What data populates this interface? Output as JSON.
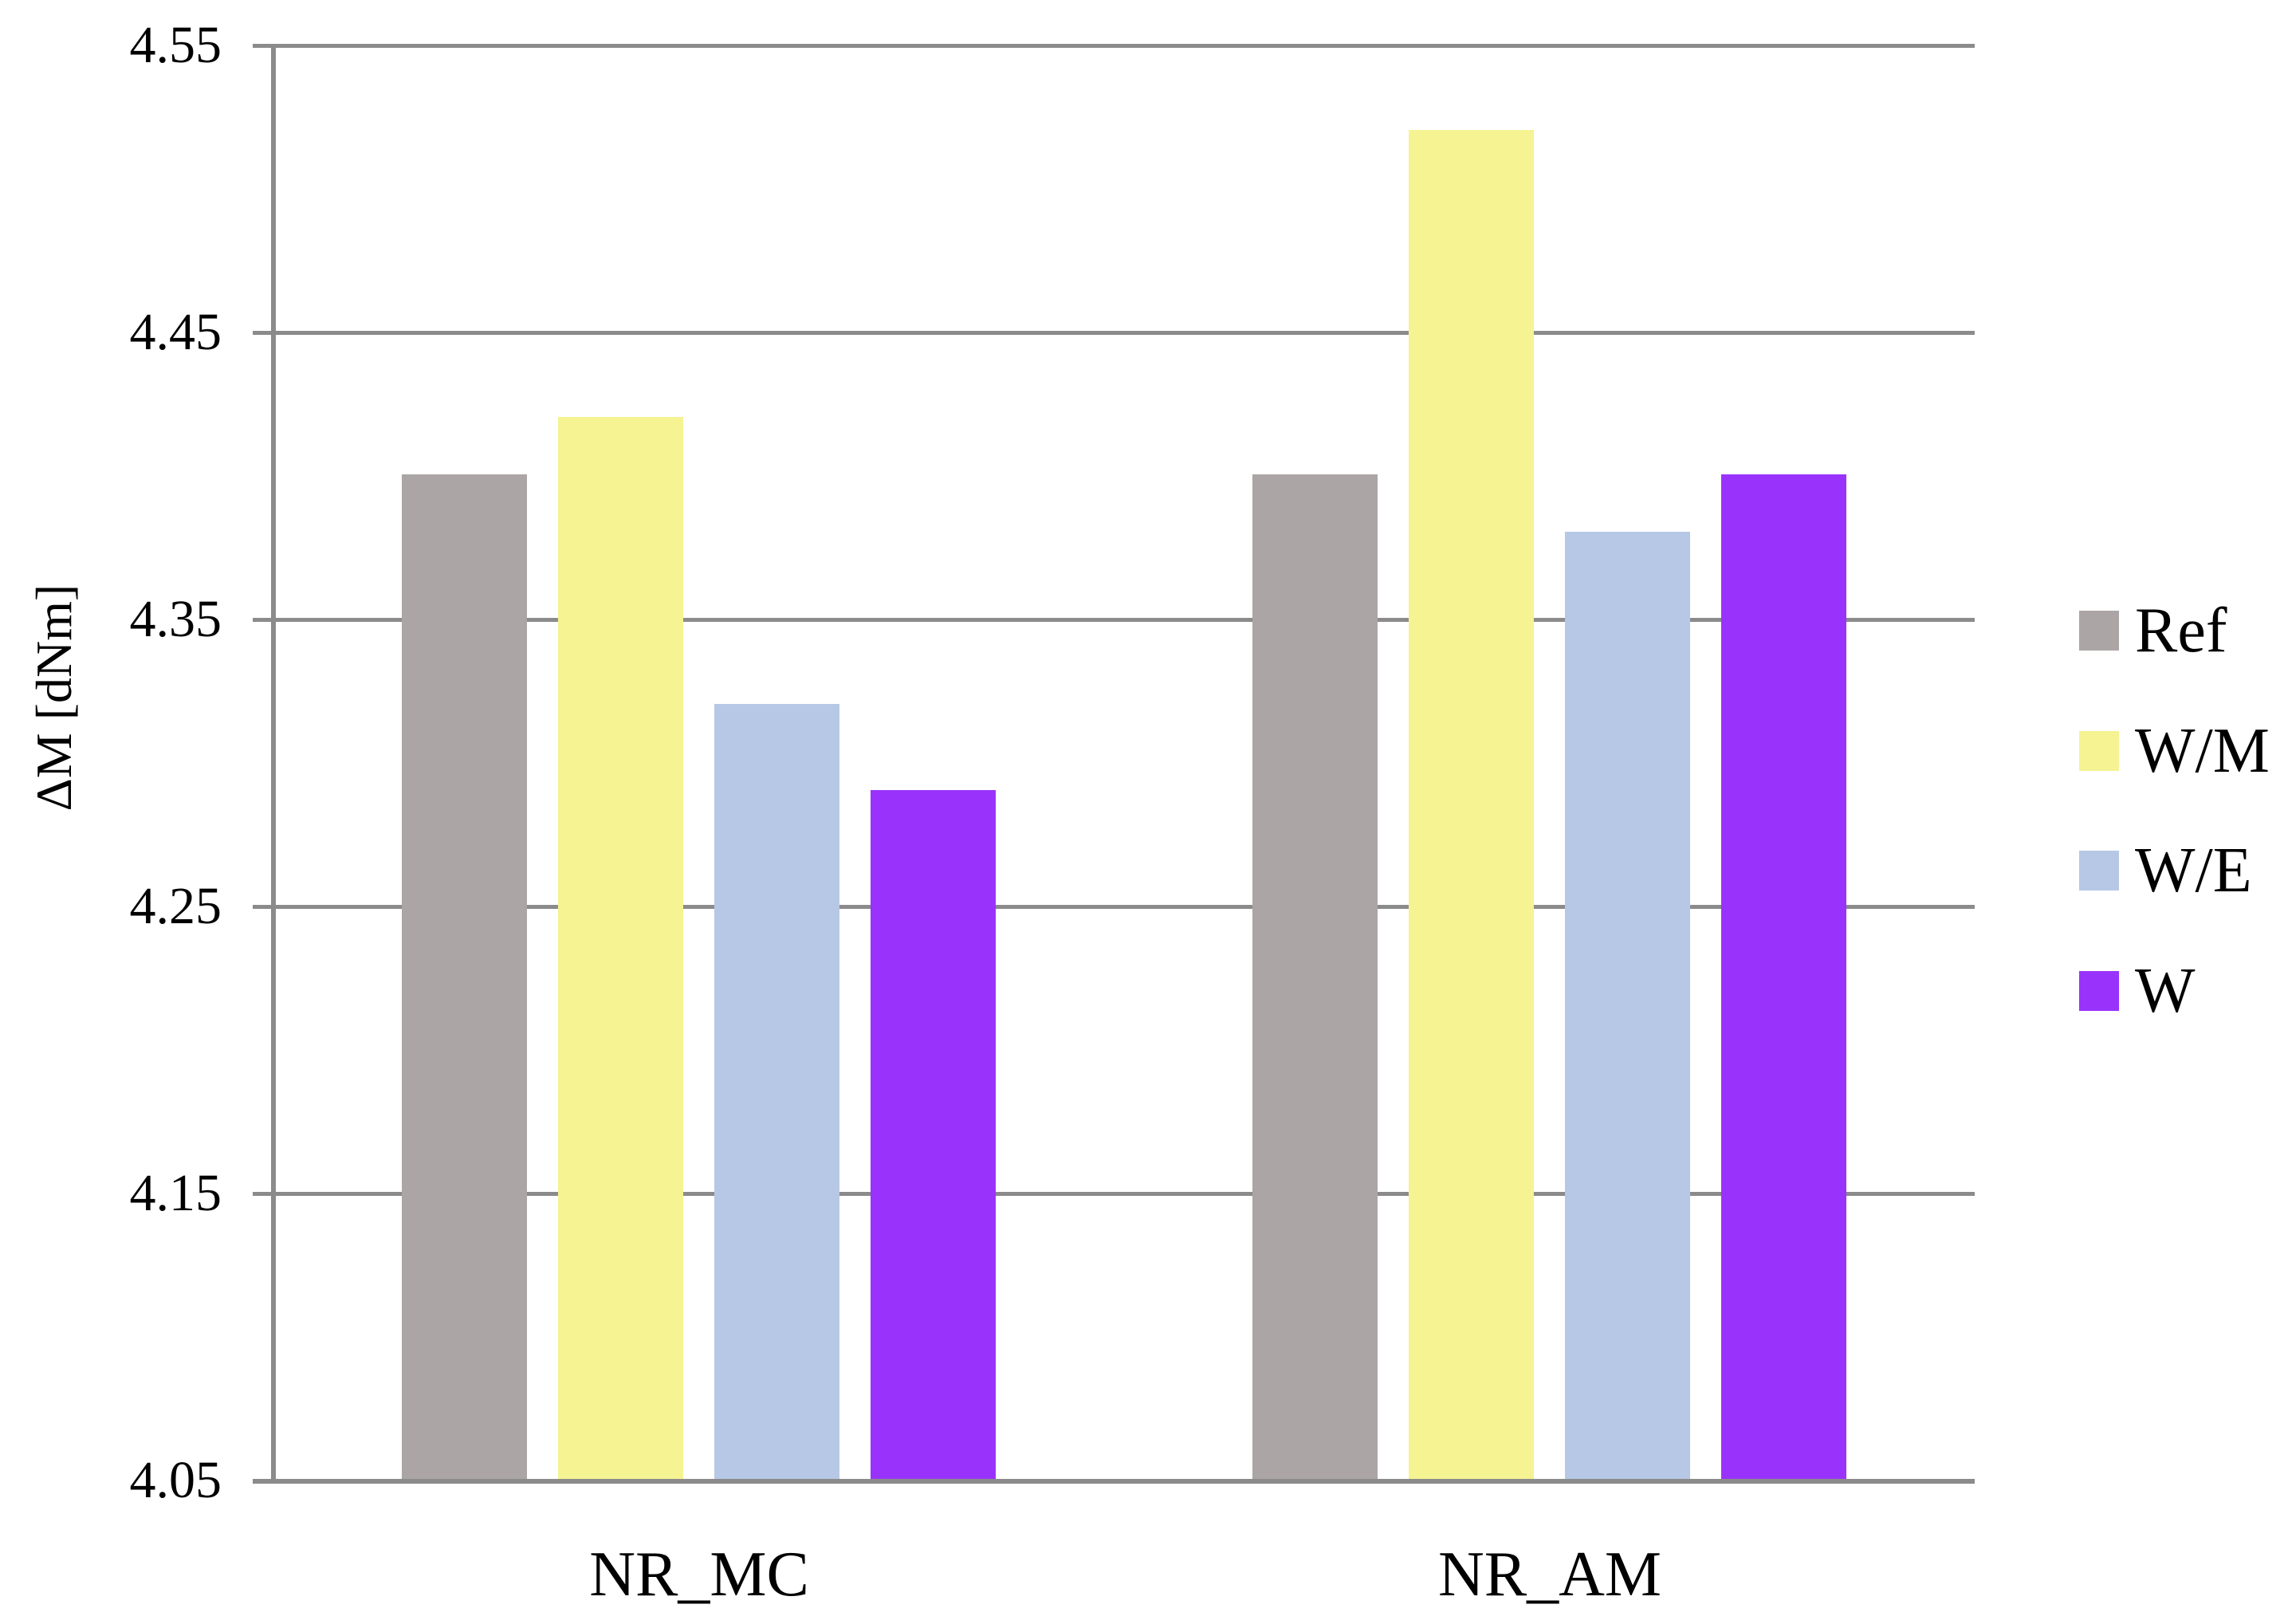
{
  "chart_data": {
    "type": "bar",
    "title": "",
    "xlabel": "",
    "ylabel": "ΔM [dNm]",
    "categories": [
      "NR_MC",
      "NR_AM"
    ],
    "series": [
      {
        "name": "Ref",
        "color": "#aba5a5",
        "values": [
          4.4,
          4.4
        ]
      },
      {
        "name": "W/M",
        "color": "#f5f392",
        "values": [
          4.42,
          4.52
        ]
      },
      {
        "name": "W/E",
        "color": "#b7c8e6",
        "values": [
          4.32,
          4.38
        ]
      },
      {
        "name": "W",
        "color": "#9933fb",
        "values": [
          4.29,
          4.4
        ]
      }
    ],
    "ylim": [
      4.05,
      4.55
    ],
    "ytick_step": 0.1,
    "ytick_labels": [
      "4.55",
      "4.45",
      "4.35",
      "4.25",
      "4.15",
      "4.05"
    ],
    "grid": "horizontal",
    "legend_position": "right",
    "axis_color": "#8b8b8b",
    "text_color": "#000000",
    "background": "#ffffff"
  }
}
